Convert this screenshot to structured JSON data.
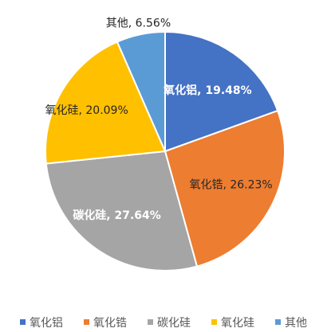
{
  "chart_data": {
    "type": "pie",
    "title": "",
    "start_angle_deg": 0,
    "direction": "clockwise",
    "slices": [
      {
        "name": "氧化铝",
        "value": 19.48,
        "label": "氧化铝, 19.48%",
        "color": "#4472C4",
        "label_color": "#FFFFFF",
        "label_placement": "inside"
      },
      {
        "name": "氧化锆",
        "value": 26.23,
        "label": "氧化锆, 26.23%",
        "color": "#ED7D31",
        "label_color": "#262626",
        "label_placement": "inside"
      },
      {
        "name": "碳化硅",
        "value": 27.64,
        "label": "碳化硅, 27.64%",
        "color": "#A5A5A5",
        "label_color": "#FFFFFF",
        "label_placement": "inside"
      },
      {
        "name": "氧化硅",
        "value": 20.09,
        "label": "氧化硅, 20.09%",
        "color": "#FFC000",
        "label_color": "#262626",
        "label_placement": "inside"
      },
      {
        "name": "其他",
        "value": 6.56,
        "label": "其他, 6.56%",
        "color": "#5B9BD5",
        "label_color": "#262626",
        "label_placement": "outside"
      }
    ],
    "legend": {
      "position": "bottom",
      "items": [
        "氧化铝",
        "氧化锆",
        "碳化硅",
        "氧化硅",
        "其他"
      ]
    }
  }
}
